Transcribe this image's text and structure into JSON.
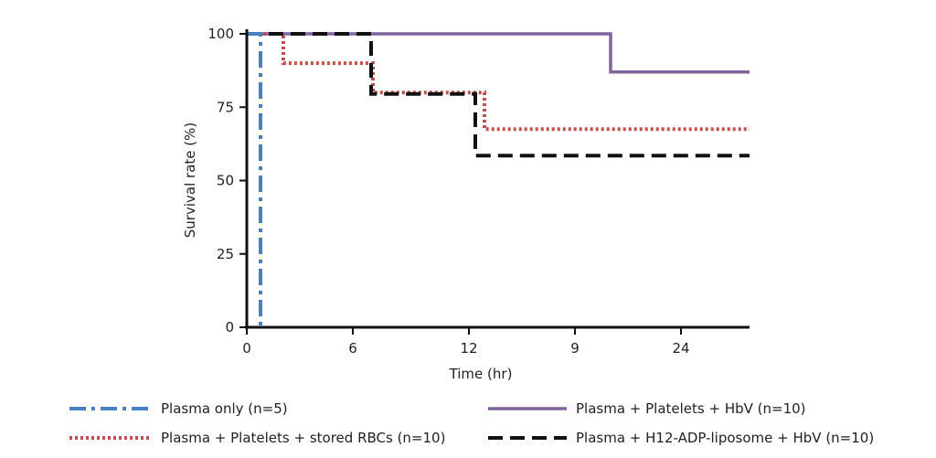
{
  "chart_data": {
    "type": "line",
    "xlabel": "Time (hr)",
    "ylabel": "Survival rate (%)",
    "xticks": [
      "0",
      "6",
      "12",
      "9",
      "24"
    ],
    "yticks": [
      "0",
      "25",
      "50",
      "75",
      "100"
    ],
    "ylim": [
      0,
      100
    ],
    "x_axis_note": "tick labels printed as 0, 6, 12, 9, 24",
    "grid": false,
    "legend_position": "bottom",
    "series": [
      {
        "name": "Plasma only (n=5)",
        "color": "#4a7fc1",
        "style": "dash-dot",
        "x": [
          0,
          0.75,
          0.75
        ],
        "y": [
          100,
          100,
          0
        ]
      },
      {
        "name": "Plasma + Platelets + stored RBCs (n=10)",
        "color": "#c0504d",
        "style": "dotted",
        "x": [
          0,
          2,
          2,
          6.9,
          6.9,
          13,
          13,
          27.5
        ],
        "y": [
          100,
          100,
          90,
          90,
          80,
          80,
          67.5,
          67.5
        ]
      },
      {
        "name": "Plasma + Platelets + HbV (n=10)",
        "color": "#8064a2",
        "style": "solid",
        "x": [
          0,
          19.9,
          19.9,
          27.5
        ],
        "y": [
          100,
          100,
          87,
          87
        ]
      },
      {
        "name": "Plasma + H12-ADP-liposome + HbV (n=10)",
        "color": "#111111",
        "style": "dashed",
        "x": [
          0,
          6.8,
          6.8,
          12.5,
          12.5,
          27.5
        ],
        "y": [
          100,
          100,
          79.5,
          79.5,
          58.5,
          58.5
        ]
      }
    ]
  }
}
